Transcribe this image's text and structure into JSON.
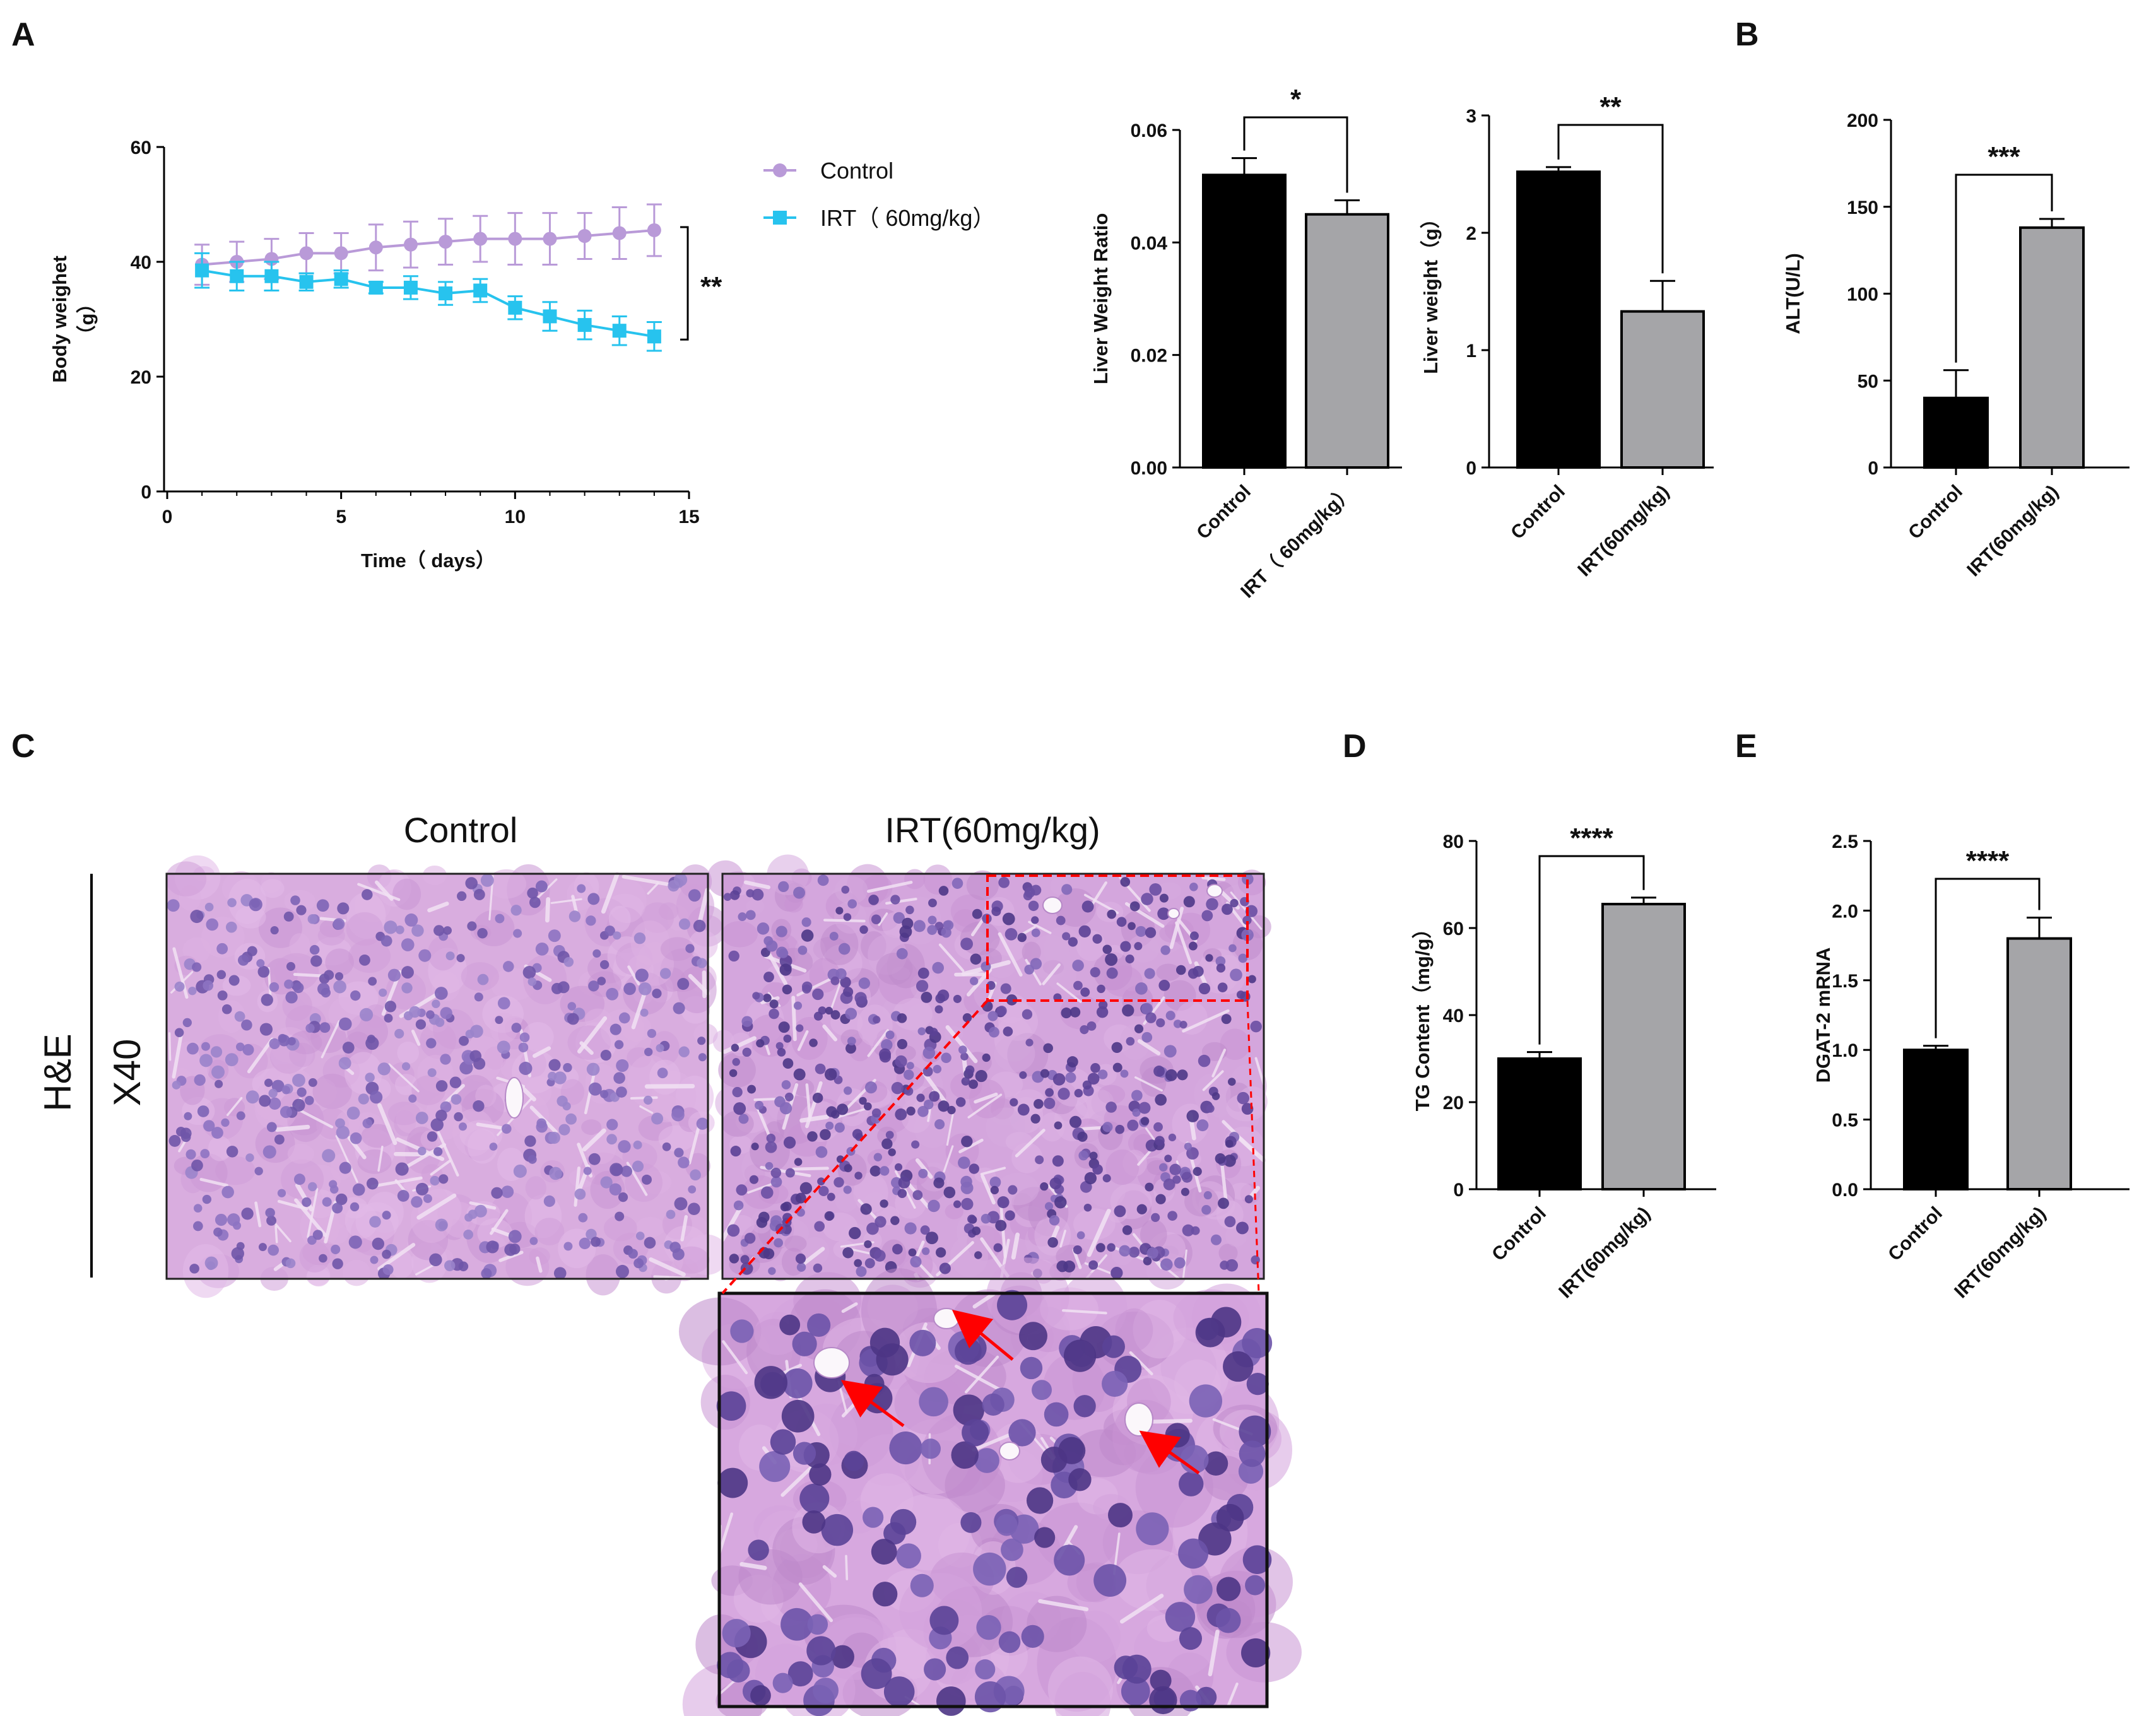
{
  "panels": {
    "A": "A",
    "B": "B",
    "C": "C",
    "D": "D",
    "E": "E"
  },
  "colors": {
    "control_line": "#b99ad8",
    "irt_line": "#27c3ee",
    "control_bar": "#000000",
    "irt_bar": "#a5a5a8",
    "arrow_red": "#ff0000",
    "tissue_pink": "#d8a9e0",
    "nucleus_purple": "#7a5cb0"
  },
  "chart_data": [
    {
      "id": "body-weight",
      "type": "line",
      "xlabel": "Time（ days）",
      "ylabel_line1": "Body weighet",
      "ylabel_line2": "（g）",
      "xlim": [
        0,
        15
      ],
      "ylim": [
        0,
        60
      ],
      "xticks": [
        "0",
        "5",
        "10",
        "15"
      ],
      "yticks": [
        "0",
        "20",
        "40",
        "60"
      ],
      "x": [
        1,
        2,
        3,
        4,
        5,
        6,
        7,
        8,
        9,
        10,
        11,
        12,
        13,
        14
      ],
      "significance": "**",
      "series": [
        {
          "name": "Control",
          "values": [
            39.5,
            40,
            40.5,
            41.5,
            41.5,
            42.5,
            43,
            43.5,
            44,
            44,
            44,
            44.5,
            45,
            45.5
          ],
          "errors": [
            3.5,
            3.5,
            3.5,
            3.5,
            3.5,
            4,
            4,
            4,
            4,
            4.5,
            4.5,
            4,
            4.5,
            4.5
          ]
        },
        {
          "name": "IRT（ 60mg/kg）",
          "values": [
            38.5,
            37.5,
            37.5,
            36.5,
            37,
            35.5,
            35.5,
            34.5,
            35,
            32,
            30.5,
            29,
            28,
            27
          ],
          "errors": [
            3,
            2.5,
            2.5,
            1.5,
            1.5,
            1,
            2,
            2,
            2,
            2,
            2.5,
            2.5,
            2.5,
            2.5
          ]
        }
      ]
    },
    {
      "id": "liver-weight-ratio",
      "type": "bar",
      "ylabel": "Liver Weight Ratio",
      "ylim": [
        0,
        0.06
      ],
      "yticks": [
        "0.00",
        "0.02",
        "0.04",
        "0.06"
      ],
      "categories": [
        "Control",
        "IRT（ 60mg/kg）"
      ],
      "values": [
        0.052,
        0.045
      ],
      "errors": [
        0.003,
        0.0025
      ],
      "significance": "*"
    },
    {
      "id": "liver-weight",
      "type": "bar",
      "ylabel": "Liver weight（g）",
      "ylim": [
        0,
        3
      ],
      "yticks": [
        "0",
        "1",
        "2",
        "3"
      ],
      "categories": [
        "Control",
        "IRT(60mg/kg)"
      ],
      "values": [
        2.52,
        1.33
      ],
      "errors": [
        0.04,
        0.26
      ],
      "significance": "**"
    },
    {
      "id": "alt",
      "type": "bar",
      "ylabel": "ALT(U/L)",
      "ylim": [
        0,
        200
      ],
      "yticks": [
        "0",
        "50",
        "100",
        "150",
        "200"
      ],
      "categories": [
        "Control",
        "IRT(60mg/kg)"
      ],
      "values": [
        40,
        138
      ],
      "errors": [
        16,
        5
      ],
      "significance": "***"
    },
    {
      "id": "tg-content",
      "type": "bar",
      "ylabel": "TG Content（mg/g）",
      "ylim": [
        0,
        80
      ],
      "yticks": [
        "0",
        "20",
        "40",
        "60",
        "80"
      ],
      "categories": [
        "Control",
        "IRT(60mg/kg)"
      ],
      "values": [
        30,
        65.5
      ],
      "errors": [
        1.5,
        1.5
      ],
      "significance": "****"
    },
    {
      "id": "dgat2-mrna",
      "type": "bar",
      "ylabel": "DGAT-2 mRNA",
      "ylim": [
        0,
        2.5
      ],
      "yticks": [
        "0.0",
        "0.5",
        "1.0",
        "1.5",
        "2.0",
        "2.5"
      ],
      "categories": [
        "Control",
        "IRT(60mg/kg)"
      ],
      "values": [
        1.0,
        1.8
      ],
      "errors": [
        0.03,
        0.15
      ],
      "significance": "****"
    }
  ],
  "histology": {
    "title_control": "Control",
    "title_irt": "IRT(60mg/kg)",
    "stain": "H&E",
    "magnification": "X40"
  }
}
